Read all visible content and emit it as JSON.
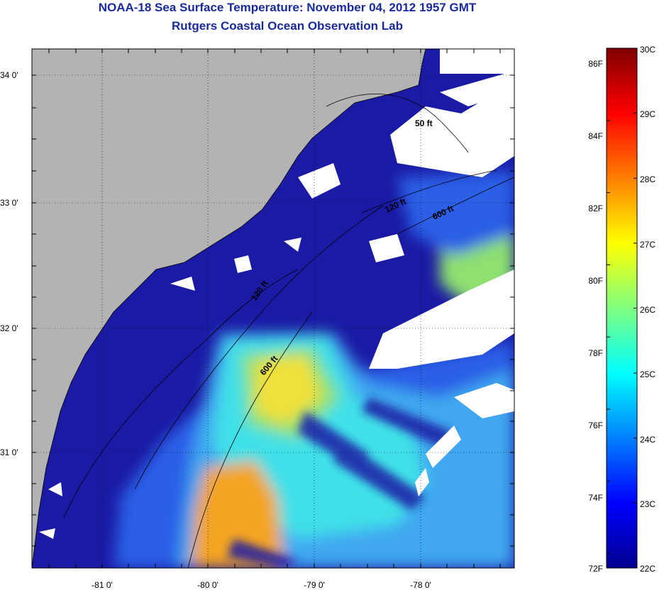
{
  "header": {
    "title": "NOAA-18 Sea Surface Temperature:  November 04, 2012 1957 GMT",
    "subtitle": "Rutgers Coastal Ocean Observation Lab"
  },
  "map": {
    "lon_labels": [
      {
        "lon": -81,
        "text": "-81 0'"
      },
      {
        "lon": -80,
        "text": "-80 0'"
      },
      {
        "lon": -79,
        "text": "-79 0'"
      },
      {
        "lon": -78,
        "text": "-78 0'"
      }
    ],
    "lat_labels": [
      {
        "lat": 34,
        "text": "34 0'"
      },
      {
        "lat": 33,
        "text": "33 0'"
      },
      {
        "lat": 32,
        "text": "32 0'"
      },
      {
        "lat": 31,
        "text": "31 0'"
      }
    ],
    "contour_labels": [
      {
        "text": "50 ft"
      },
      {
        "text": "120 ft"
      },
      {
        "text": "600 ft"
      },
      {
        "text": "120 ft"
      },
      {
        "text": "600 ft"
      }
    ],
    "colors": {
      "land": "#b3b3b3",
      "cloud": "#ffffff",
      "cold_navy": "#1a1aa4",
      "blue": "#2c5fe6",
      "light_blue": "#3fa7f0",
      "cyan": "#3fe0e8",
      "green": "#8ee070",
      "yellow": "#f0e03a",
      "orange": "#f3a423"
    }
  },
  "colorbar": {
    "fahrenheit_labels": [
      "86F",
      "84F",
      "82F",
      "80F",
      "78F",
      "76F",
      "74F",
      "72F"
    ],
    "celsius_labels": [
      "30C",
      "29C",
      "28C",
      "27C",
      "26C",
      "25C",
      "24C",
      "23C",
      "22C"
    ],
    "min_c": 22,
    "max_c": 30
  }
}
